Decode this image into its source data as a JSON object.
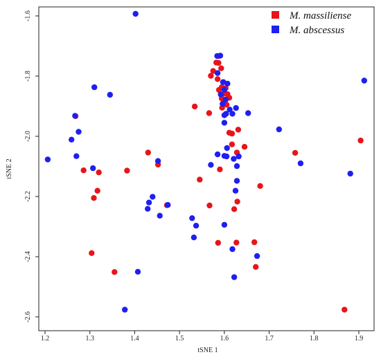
{
  "chart_data": {
    "type": "scatter",
    "xlabel": "tSNE 1",
    "ylabel": "tSNE 2",
    "xlim": [
      1.2,
      1.92
    ],
    "ylim": [
      -2.6,
      -1.56
    ],
    "xticks": [
      "1.2",
      "1.3",
      "1.4",
      "1.5",
      "1.6",
      "1.7",
      "1.8",
      "1.9"
    ],
    "xtick_values": [
      1.2,
      1.3,
      1.4,
      1.5,
      1.6,
      1.7,
      1.8,
      1.9
    ],
    "yticks": [
      "-1.6",
      "-1.8",
      "-2.0",
      "-2.2",
      "-2.4",
      "-2.6"
    ],
    "ytick_values": [
      -1.6,
      -1.8,
      -2.0,
      -2.2,
      -2.4,
      -2.6
    ],
    "grid": false,
    "legend_position": "top-right",
    "series": [
      {
        "name": "M. massiliense",
        "color": "#e8141b",
        "points": [
          [
            1.268,
            -1.933
          ],
          [
            1.286,
            -2.113
          ],
          [
            1.32,
            -2.12
          ],
          [
            1.317,
            -2.181
          ],
          [
            1.309,
            -2.205
          ],
          [
            1.304,
            -2.388
          ],
          [
            1.355,
            -2.451
          ],
          [
            1.383,
            -2.114
          ],
          [
            1.43,
            -2.054
          ],
          [
            1.452,
            -2.094
          ],
          [
            1.472,
            -2.229
          ],
          [
            1.534,
            -1.901
          ],
          [
            1.545,
            -2.144
          ],
          [
            1.566,
            -1.923
          ],
          [
            1.567,
            -2.23
          ],
          [
            1.586,
            -2.354
          ],
          [
            1.59,
            -2.11
          ],
          [
            1.57,
            -1.799
          ],
          [
            1.575,
            -1.783
          ],
          [
            1.582,
            -1.755
          ],
          [
            1.587,
            -1.756
          ],
          [
            1.588,
            -1.733
          ],
          [
            1.593,
            -1.774
          ],
          [
            1.585,
            -1.81
          ],
          [
            1.598,
            -1.82
          ],
          [
            1.594,
            -1.837
          ],
          [
            1.603,
            -1.84
          ],
          [
            1.588,
            -1.846
          ],
          [
            1.6,
            -1.858
          ],
          [
            1.607,
            -1.86
          ],
          [
            1.594,
            -1.874
          ],
          [
            1.601,
            -1.882
          ],
          [
            1.611,
            -1.872
          ],
          [
            1.605,
            -1.895
          ],
          [
            1.595,
            -1.905
          ],
          [
            1.611,
            -1.988
          ],
          [
            1.617,
            -1.991
          ],
          [
            1.631,
            -1.978
          ],
          [
            1.617,
            -2.027
          ],
          [
            1.645,
            -2.035
          ],
          [
            1.628,
            -2.054
          ],
          [
            1.629,
            -2.217
          ],
          [
            1.622,
            -2.242
          ],
          [
            1.627,
            -2.353
          ],
          [
            1.667,
            -2.352
          ],
          [
            1.68,
            -2.165
          ],
          [
            1.67,
            -2.434
          ],
          [
            1.758,
            -2.055
          ],
          [
            1.868,
            -2.576
          ],
          [
            1.904,
            -2.014
          ]
        ]
      },
      {
        "name": "M. abscessus",
        "color": "#1f1ff0",
        "points": [
          [
            1.206,
            -2.077
          ],
          [
            1.259,
            -2.011
          ],
          [
            1.27,
            -2.066
          ],
          [
            1.267,
            -1.932
          ],
          [
            1.275,
            -1.985
          ],
          [
            1.307,
            -2.106
          ],
          [
            1.31,
            -1.837
          ],
          [
            1.345,
            -1.862
          ],
          [
            1.402,
            -1.593
          ],
          [
            1.407,
            -2.45
          ],
          [
            1.378,
            -2.576
          ],
          [
            1.429,
            -2.241
          ],
          [
            1.432,
            -2.22
          ],
          [
            1.44,
            -2.201
          ],
          [
            1.452,
            -2.082
          ],
          [
            1.456,
            -2.264
          ],
          [
            1.474,
            -2.228
          ],
          [
            1.528,
            -2.272
          ],
          [
            1.537,
            -2.297
          ],
          [
            1.532,
            -2.336
          ],
          [
            1.57,
            -2.095
          ],
          [
            1.584,
            -1.733
          ],
          [
            1.591,
            -1.732
          ],
          [
            1.585,
            -1.79
          ],
          [
            1.597,
            -1.82
          ],
          [
            1.607,
            -1.825
          ],
          [
            1.6,
            -1.845
          ],
          [
            1.592,
            -1.861
          ],
          [
            1.603,
            -1.878
          ],
          [
            1.596,
            -1.892
          ],
          [
            1.6,
            -1.93
          ],
          [
            1.6,
            -1.955
          ],
          [
            1.604,
            -1.925
          ],
          [
            1.612,
            -1.911
          ],
          [
            1.618,
            -1.925
          ],
          [
            1.626,
            -1.906
          ],
          [
            1.653,
            -1.923
          ],
          [
            1.585,
            -2.06
          ],
          [
            1.6,
            -2.065
          ],
          [
            1.606,
            -2.039
          ],
          [
            1.605,
            -2.067
          ],
          [
            1.621,
            -2.075
          ],
          [
            1.632,
            -2.067
          ],
          [
            1.628,
            -2.099
          ],
          [
            1.628,
            -2.148
          ],
          [
            1.625,
            -2.181
          ],
          [
            1.6,
            -2.294
          ],
          [
            1.618,
            -2.375
          ],
          [
            1.622,
            -2.468
          ],
          [
            1.673,
            -2.398
          ],
          [
            1.722,
            -1.977
          ],
          [
            1.77,
            -2.09
          ],
          [
            1.881,
            -2.124
          ],
          [
            1.912,
            -1.815
          ]
        ]
      }
    ]
  }
}
